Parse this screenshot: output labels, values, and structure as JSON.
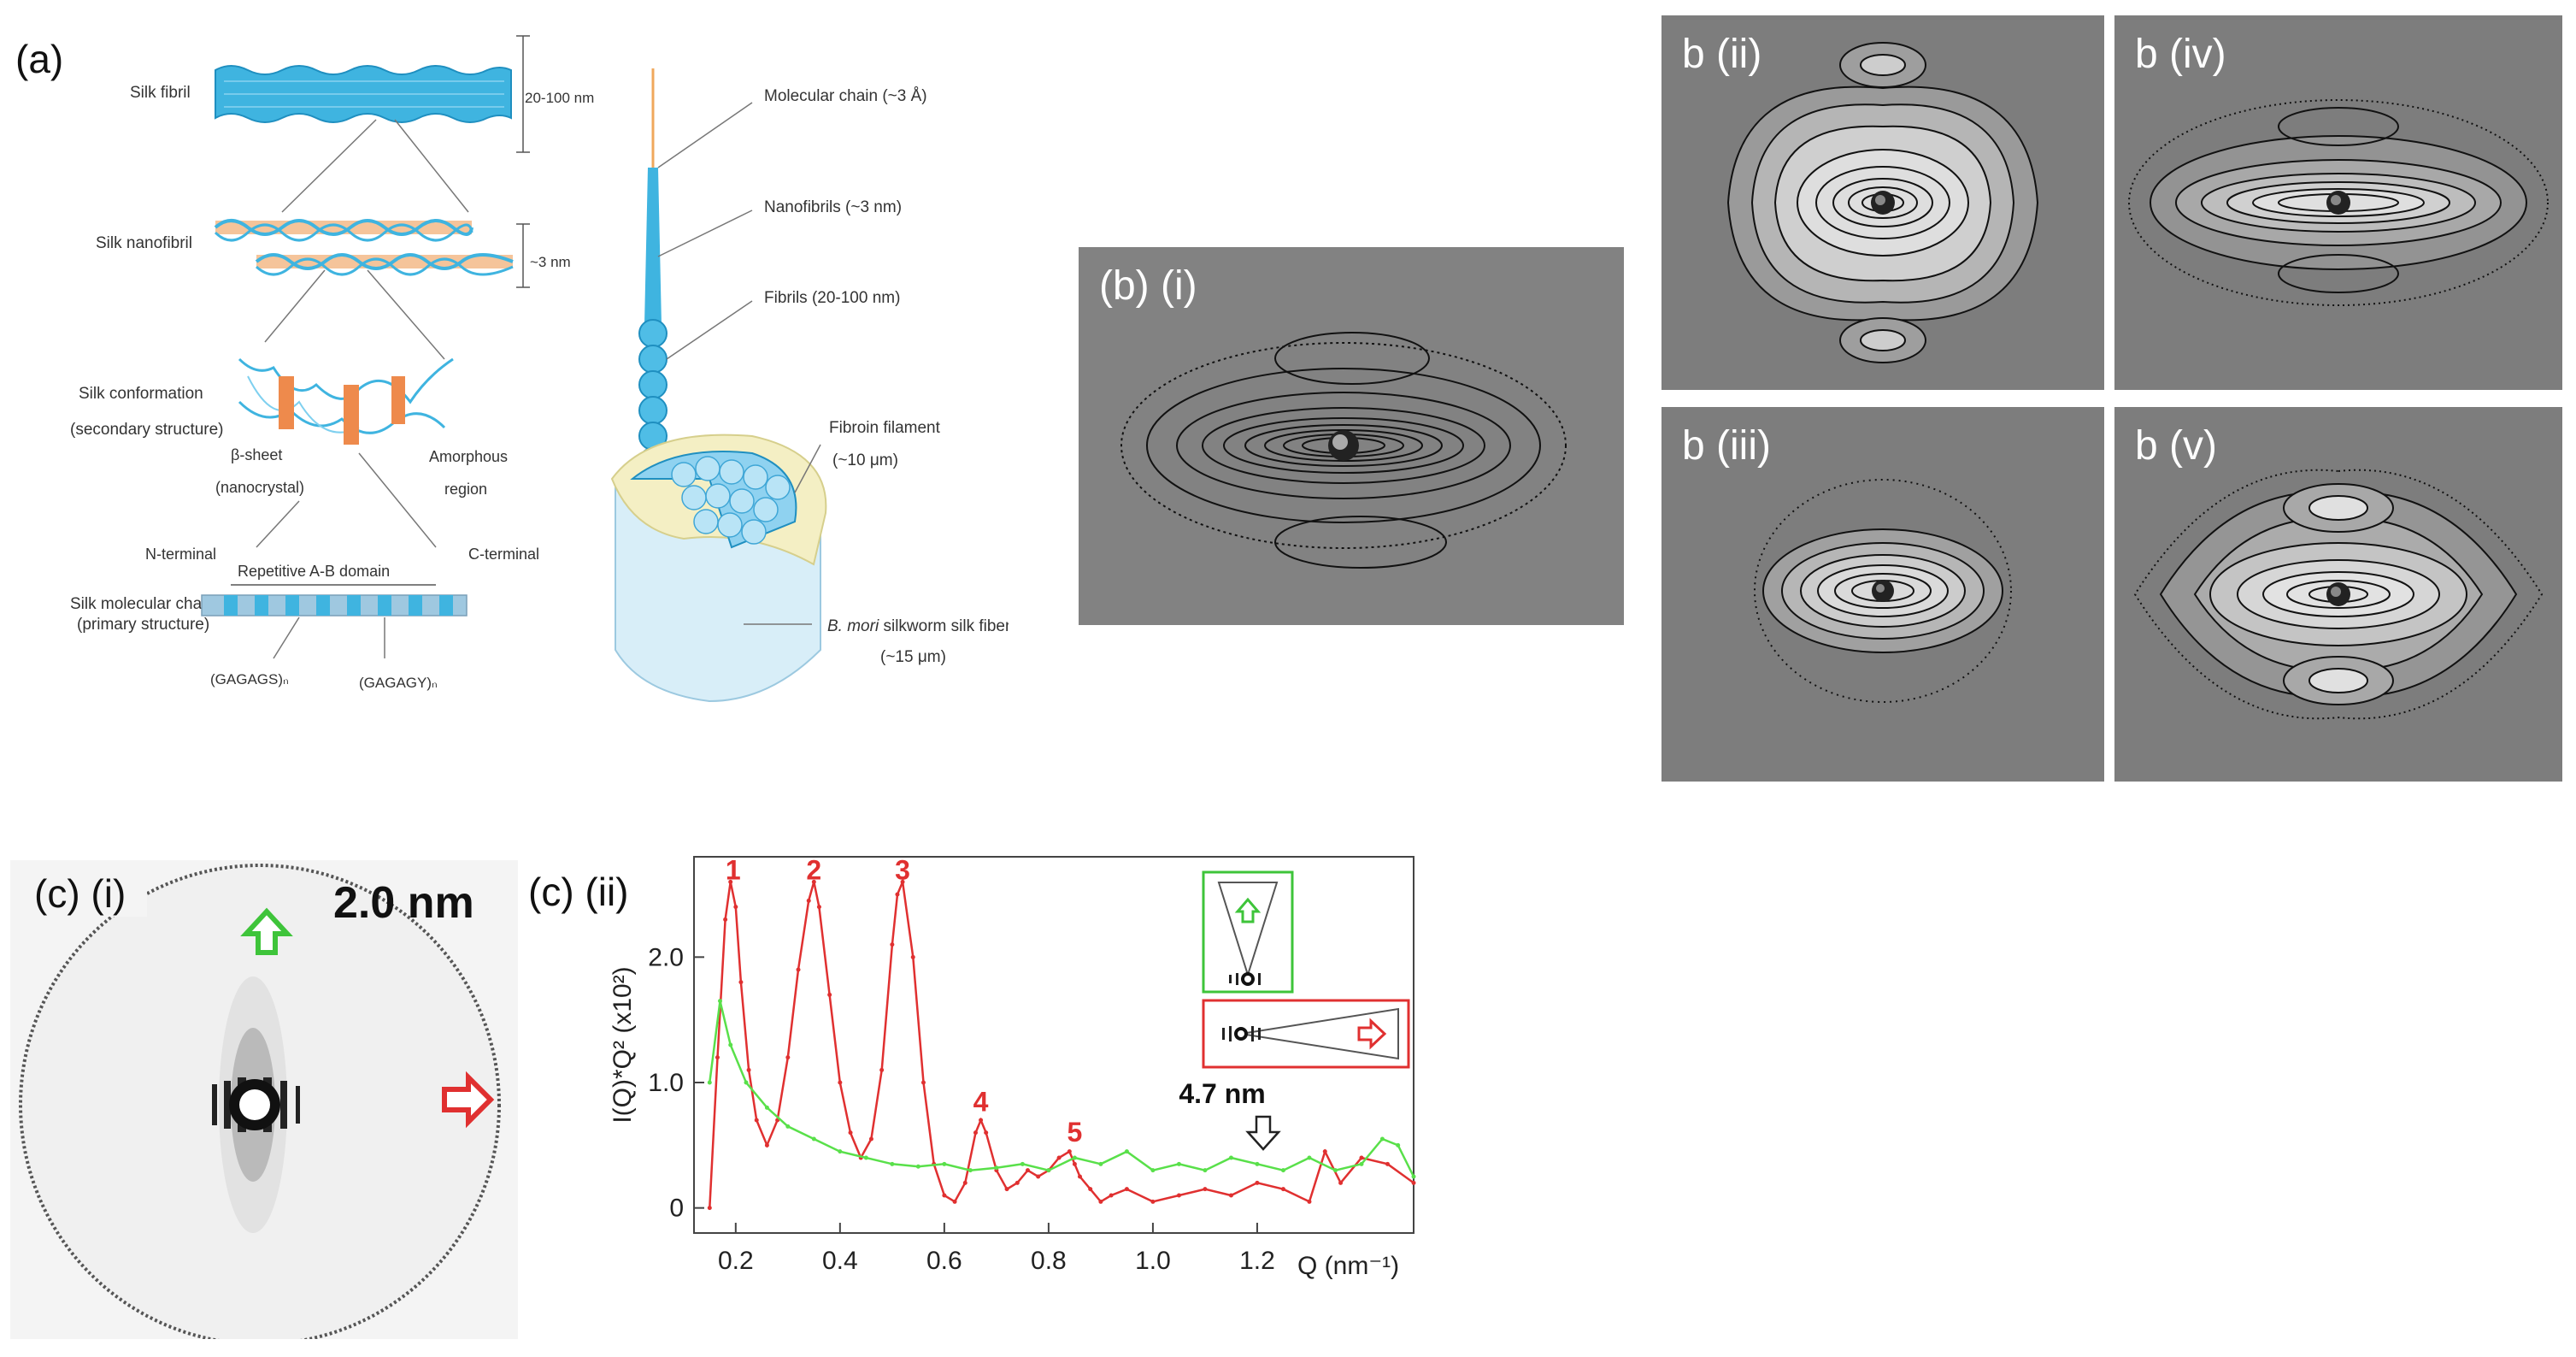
{
  "figure": {
    "panel_a": {
      "label": "(a)",
      "silk_fibril": "Silk fibril",
      "fibril_size": "20-100 nm",
      "silk_nanofibril": "Silk nanofibril",
      "nanofibril_size": "~3 nm",
      "conformation_line1": "Silk conformation",
      "conformation_line2": "(secondary structure)",
      "beta_sheet_line1": "β-sheet",
      "beta_sheet_line2": "(nanocrystal)",
      "amorphous_line1": "Amorphous",
      "amorphous_line2": "region",
      "n_terminal": "N-terminal",
      "c_terminal": "C-terminal",
      "repetitive_domain": "Repetitive A-B domain",
      "molecular_chain_line1": "Silk molecular chain",
      "molecular_chain_line2": "(primary structure)",
      "gagags": "(GAGAGS)ₙ",
      "gagagy": "(GAGAGY)ₙ",
      "hier_molecular_chain": "Molecular chain (~3 Å)",
      "hier_nanofibrils": "Nanofibrils (~3 nm)",
      "hier_fibrils": "Fibrils (20-100 nm)",
      "hier_filament_line1": "Fibroin filament",
      "hier_filament_line2": "(~10 μm)",
      "hier_fiber_italic": "B. mori",
      "hier_fiber_rest": " silkworm silk fiber",
      "hier_fiber_line2": "(~15 μm)"
    },
    "panel_b": {
      "b_i": "(b)  (i)",
      "b_ii": "b (ii)",
      "b_iii": "b (iii)",
      "b_iv": "b (iv)",
      "b_v": "b (v)"
    },
    "panel_c_i": {
      "label": "(c)  (i)",
      "scale": "2.0 nm"
    },
    "panel_c_ii": {
      "label": "(c)  (ii)",
      "annotation": "4.7 nm"
    },
    "colors": {
      "silk_blue": "#3fb4e0",
      "red_trace": "#e03030",
      "green_trace": "#59e04a",
      "pattern_bg": "#7d7d7d"
    }
  },
  "chart_data": {
    "type": "line",
    "title": "",
    "xlabel": "Q (nm⁻¹)",
    "ylabel": "I(Q)*Q² (x10²)",
    "xlim": [
      0.12,
      1.5
    ],
    "ylim": [
      -0.2,
      2.8
    ],
    "xticks": [
      "0.2",
      "0.4",
      "0.6",
      "0.8",
      "1.0",
      "1.2"
    ],
    "yticks": [
      "0",
      "1.0",
      "2.0"
    ],
    "peak_labels": [
      {
        "text": "1",
        "x": 0.195,
        "y": 2.62
      },
      {
        "text": "2",
        "x": 0.35,
        "y": 2.62
      },
      {
        "text": "3",
        "x": 0.52,
        "y": 2.62
      },
      {
        "text": "4",
        "x": 0.67,
        "y": 0.77
      },
      {
        "text": "5",
        "x": 0.85,
        "y": 0.53
      }
    ],
    "series": [
      {
        "name": "horizontal (red)",
        "color": "#e03030",
        "x": [
          0.15,
          0.165,
          0.18,
          0.19,
          0.2,
          0.21,
          0.225,
          0.24,
          0.26,
          0.28,
          0.3,
          0.32,
          0.34,
          0.35,
          0.36,
          0.38,
          0.4,
          0.42,
          0.44,
          0.46,
          0.48,
          0.5,
          0.51,
          0.52,
          0.54,
          0.56,
          0.58,
          0.6,
          0.62,
          0.64,
          0.66,
          0.67,
          0.68,
          0.7,
          0.72,
          0.74,
          0.76,
          0.78,
          0.8,
          0.82,
          0.84,
          0.85,
          0.86,
          0.88,
          0.9,
          0.92,
          0.95,
          1.0,
          1.05,
          1.1,
          1.15,
          1.2,
          1.25,
          1.3,
          1.33,
          1.36,
          1.4,
          1.45,
          1.5
        ],
        "y": [
          0.0,
          1.2,
          2.3,
          2.6,
          2.4,
          1.8,
          1.1,
          0.7,
          0.5,
          0.7,
          1.2,
          1.9,
          2.45,
          2.6,
          2.4,
          1.7,
          1.0,
          0.6,
          0.4,
          0.55,
          1.1,
          2.1,
          2.5,
          2.6,
          2.0,
          1.0,
          0.35,
          0.1,
          0.05,
          0.2,
          0.6,
          0.7,
          0.6,
          0.3,
          0.15,
          0.2,
          0.3,
          0.25,
          0.3,
          0.4,
          0.45,
          0.35,
          0.25,
          0.15,
          0.05,
          0.1,
          0.15,
          0.05,
          0.1,
          0.15,
          0.1,
          0.2,
          0.15,
          0.05,
          0.45,
          0.2,
          0.4,
          0.35,
          0.2
        ]
      },
      {
        "name": "vertical (green)",
        "color": "#59e04a",
        "x": [
          0.15,
          0.17,
          0.19,
          0.22,
          0.26,
          0.3,
          0.35,
          0.4,
          0.45,
          0.5,
          0.55,
          0.6,
          0.65,
          0.7,
          0.75,
          0.8,
          0.85,
          0.9,
          0.95,
          1.0,
          1.05,
          1.1,
          1.15,
          1.2,
          1.25,
          1.3,
          1.35,
          1.4,
          1.44,
          1.47,
          1.5
        ],
        "y": [
          1.0,
          1.65,
          1.3,
          1.0,
          0.8,
          0.65,
          0.55,
          0.45,
          0.4,
          0.35,
          0.33,
          0.35,
          0.3,
          0.32,
          0.35,
          0.3,
          0.4,
          0.35,
          0.45,
          0.3,
          0.35,
          0.3,
          0.4,
          0.35,
          0.3,
          0.4,
          0.3,
          0.35,
          0.55,
          0.5,
          0.25
        ]
      }
    ]
  }
}
